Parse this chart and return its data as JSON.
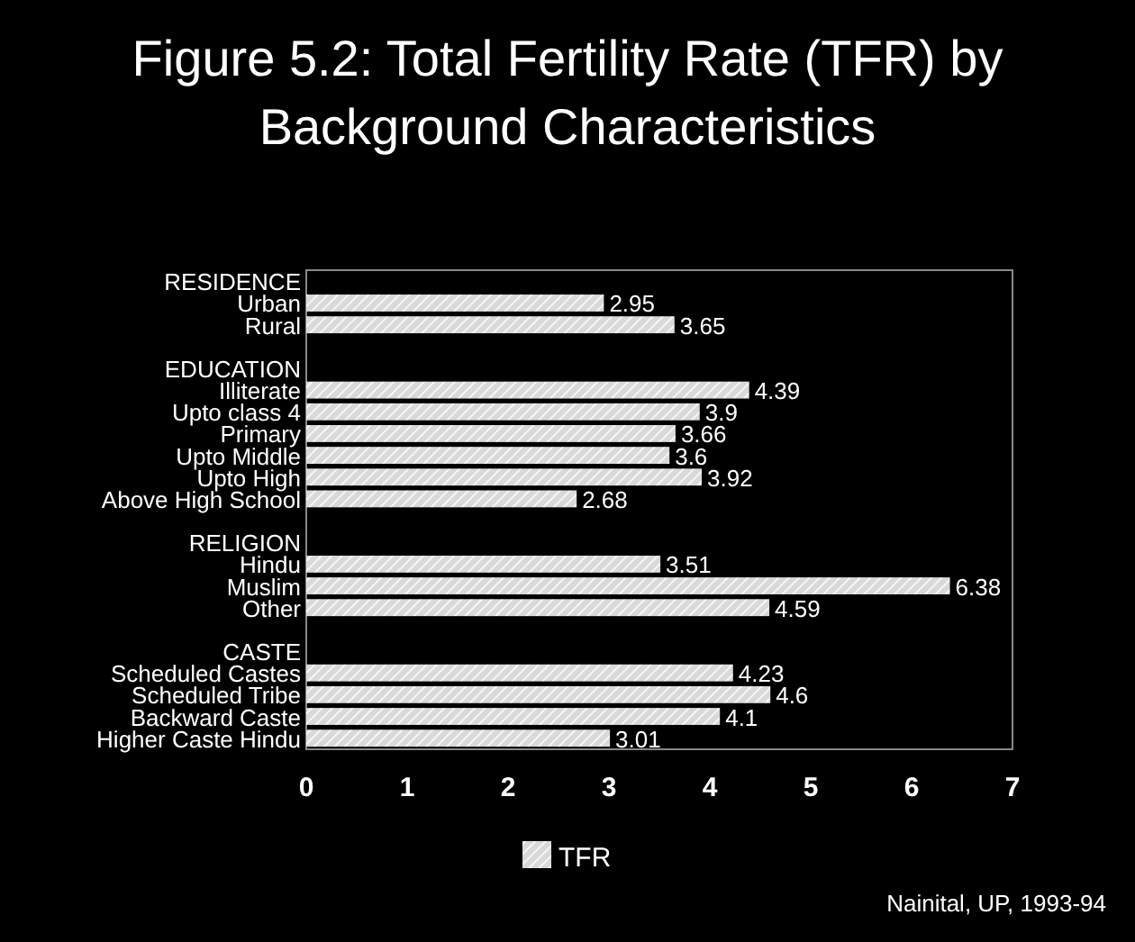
{
  "chart_data": {
    "type": "bar",
    "orientation": "horizontal",
    "title": "Figure 5.2: Total Fertility Rate (TFR) by Background Characteristics",
    "categories": [
      "RESIDENCE",
      "Urban",
      "Rural",
      null,
      "EDUCATION",
      "Illiterate",
      "Upto class 4",
      "Primary",
      "Upto Middle",
      "Upto High",
      "Above High School",
      null,
      "RELIGION",
      "Hindu",
      "Muslim",
      "Other",
      null,
      "CASTE",
      "Scheduled Castes",
      "Scheduled Tribe",
      "Backward Caste",
      "Higher Caste Hindu"
    ],
    "series": [
      {
        "name": "TFR",
        "color": "#d9d9d9",
        "values": [
          null,
          2.95,
          3.65,
          null,
          null,
          4.39,
          3.9,
          3.66,
          3.6,
          3.92,
          2.68,
          null,
          null,
          3.51,
          6.38,
          4.59,
          null,
          null,
          4.23,
          4.6,
          4.1,
          3.01
        ]
      }
    ],
    "xlim": [
      0,
      7
    ],
    "xticks": [
      0,
      1,
      2,
      3,
      4,
      5,
      6,
      7
    ],
    "data_labels": true,
    "legend": "bottom",
    "annotations": [
      "Nainital, UP, 1993-94"
    ]
  }
}
